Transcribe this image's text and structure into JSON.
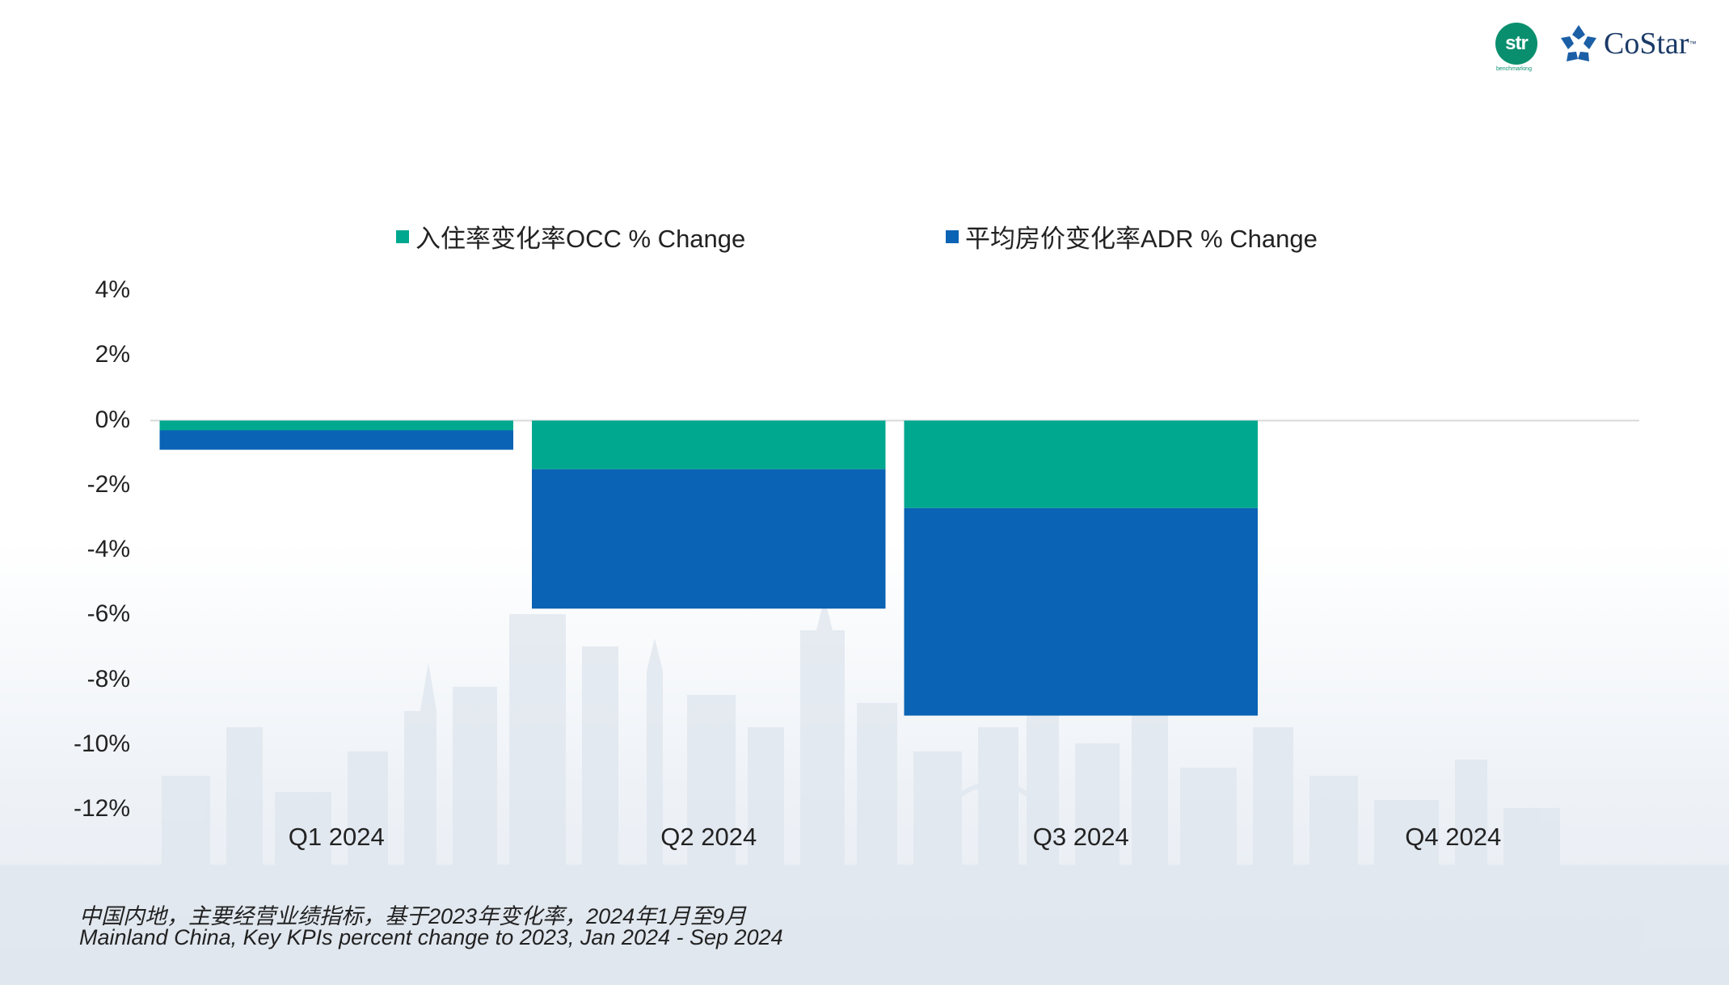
{
  "logos": {
    "str_text": "str",
    "str_sub": "benchmarking",
    "costar_text": "CoStar",
    "costar_tm": "™",
    "costar_icon": "costar-star-icon"
  },
  "colors": {
    "occ": "#00a88f",
    "adr": "#0a63b4",
    "zero_line": "#d9d9d9"
  },
  "chart_data": {
    "type": "bar",
    "stacked": true,
    "categories": [
      "Q1 2024",
      "Q2 2024",
      "Q3 2024",
      "Q4 2024"
    ],
    "series": [
      {
        "name": "入住率变化率OCC % Change",
        "values": [
          -0.3,
          -1.5,
          -2.7,
          null
        ]
      },
      {
        "name": "平均房价变化率ADR % Change",
        "values": [
          -0.6,
          -4.3,
          -6.4,
          null
        ]
      }
    ],
    "ylim": [
      -12,
      4
    ],
    "yticks": [
      4,
      2,
      0,
      -2,
      -4,
      -6,
      -8,
      -10,
      -12
    ],
    "ytick_labels": [
      "4%",
      "2%",
      "0%",
      "-2%",
      "-4%",
      "-6%",
      "-8%",
      "-10%",
      "-12%"
    ],
    "legend_position": "top",
    "grid": false,
    "xlabel": "",
    "ylabel": ""
  },
  "notes": {
    "cn": "中国内地，主要经营业绩指标，基于2023年变化率，2024年1月至9月",
    "en": "Mainland China, Key KPIs percent change to 2023, Jan 2024 - Sep 2024"
  }
}
